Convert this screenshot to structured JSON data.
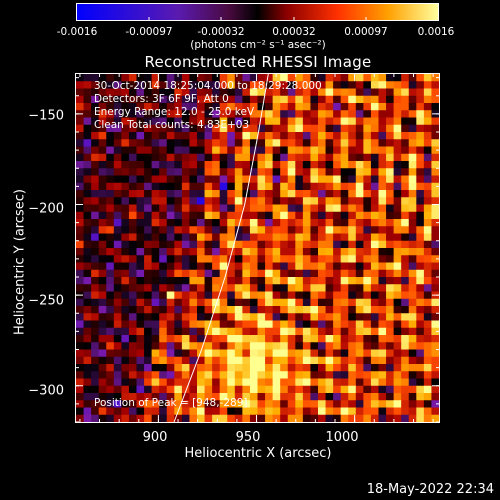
{
  "colorbar": {
    "tick_labels": [
      "-0.0016",
      "-0.00097",
      "-0.00032",
      "0.00032",
      "0.00097",
      "0.0016"
    ],
    "units": "(photons cm⁻² s⁻¹ asec⁻²)",
    "range": [
      -0.0016,
      0.0016
    ]
  },
  "chart_data": {
    "type": "heatmap",
    "title": "Reconstructed RHESSI Image",
    "xlabel": "Heliocentric X (arcsec)",
    "ylabel": "Heliocentric Y (arcsec)",
    "xlim": [
      858,
      1043
    ],
    "ylim": [
      -320,
      -128
    ],
    "x_ticks": [
      900,
      950,
      1000
    ],
    "x_tick_labels": [
      "900",
      "950",
      "1000"
    ],
    "y_ticks": [
      -150,
      -200,
      -250,
      -300
    ],
    "y_tick_labels": [
      "−150",
      "−200",
      "−250",
      "−300"
    ],
    "annotations": [
      "30-Oct-2014 18:25:04.000 to 18:29:28.000",
      "Detectors: 3F 6F 9F, Att 0",
      "Energy Range: 12.0 - 25.0 keV",
      "Clean     Total counts: 4.83E+03"
    ],
    "peak_label": "Position of Peak = [948,-289]",
    "peak_position": [
      948,
      -289
    ],
    "limb_curve": [
      [
        908,
        -320
      ],
      [
        922,
        -280
      ],
      [
        934,
        -240
      ],
      [
        944,
        -200
      ],
      [
        951,
        -160
      ],
      [
        956,
        -128
      ]
    ],
    "colormap": [
      "#0000ff",
      "#7a1aa8",
      "#000000",
      "#a80000",
      "#ff4a00",
      "#ffb000",
      "#ffff90"
    ]
  },
  "footer": {
    "date": "18-May-2022 22:34"
  }
}
